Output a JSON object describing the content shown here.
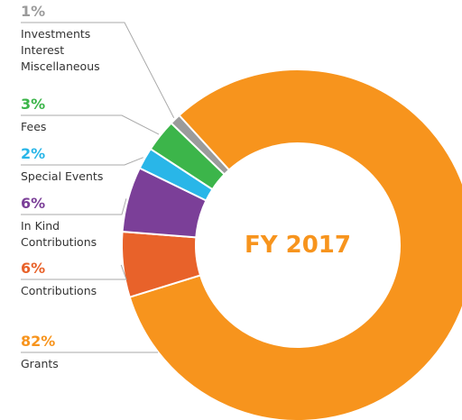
{
  "chart_data": {
    "type": "donut",
    "center_label": "FY 2017",
    "categories": [
      "Grants",
      "Contributions",
      "In Kind\nContributions",
      "Special Events",
      "Fees",
      "Investments\nInterest\nMiscellaneous"
    ],
    "values": [
      82,
      6,
      6,
      2,
      3,
      1
    ],
    "value_labels": [
      "82%",
      "6%",
      "6%",
      "2%",
      "3%",
      "1%"
    ],
    "colors": [
      "#f7941d",
      "#e8622a",
      "#7b3f98",
      "#29b6e8",
      "#3cb54a",
      "#9b9b9b"
    ]
  }
}
